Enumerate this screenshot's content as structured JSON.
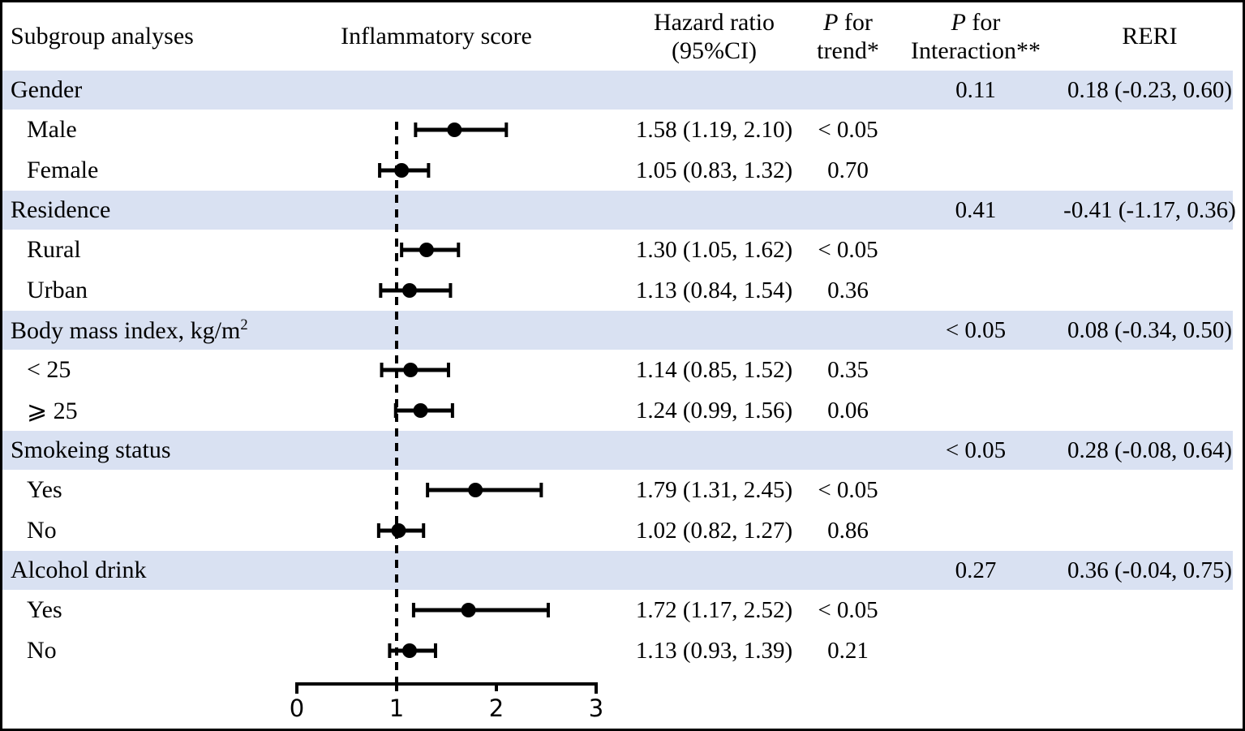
{
  "header": {
    "subgroup": "Subgroup analyses",
    "plot": "Inflammatory score",
    "hazard_line1": "Hazard ratio",
    "hazard_line2": "(95%CI)",
    "p_symbol": "P",
    "for_word": "for",
    "trend_line2": "trend*",
    "interaction_line2": "Interaction**",
    "reri": "RERI"
  },
  "colors": {
    "section_band": "#d9e1f2",
    "ink": "#000000"
  },
  "chart_data": {
    "type": "scatter",
    "variant": "forest-plot",
    "title": "",
    "xlabel": "",
    "x_axis": {
      "min": 0,
      "max": 3,
      "ticks": [
        0,
        1,
        2,
        3
      ]
    },
    "reference_line_x": 1,
    "rows": [
      {
        "type": "section",
        "label": "Gender",
        "p_interaction": "0.11",
        "reri": "0.18 (-0.23, 0.60)"
      },
      {
        "type": "item",
        "label": "Male",
        "hr": 1.58,
        "ci_low": 1.19,
        "ci_high": 2.1,
        "hr_text": "1.58 (1.19, 2.10)",
        "p_trend": "< 0.05"
      },
      {
        "type": "item",
        "label": "Female",
        "hr": 1.05,
        "ci_low": 0.83,
        "ci_high": 1.32,
        "hr_text": "1.05 (0.83, 1.32)",
        "p_trend": "0.70"
      },
      {
        "type": "section",
        "label": "Residence",
        "p_interaction": "0.41",
        "reri": "-0.41 (-1.17, 0.36)"
      },
      {
        "type": "item",
        "label": "Rural",
        "hr": 1.3,
        "ci_low": 1.05,
        "ci_high": 1.62,
        "hr_text": "1.30 (1.05, 1.62)",
        "p_trend": "< 0.05"
      },
      {
        "type": "item",
        "label": "Urban",
        "hr": 1.13,
        "ci_low": 0.84,
        "ci_high": 1.54,
        "hr_text": "1.13 (0.84, 1.54)",
        "p_trend": "0.36"
      },
      {
        "type": "section",
        "label": "Body mass index, kg/m",
        "label_superscript": "2",
        "p_interaction": "< 0.05",
        "reri": "0.08 (-0.34, 0.50)"
      },
      {
        "type": "item",
        "label": "< 25",
        "hr": 1.14,
        "ci_low": 0.85,
        "ci_high": 1.52,
        "hr_text": "1.14 (0.85, 1.52)",
        "p_trend": "0.35"
      },
      {
        "type": "item",
        "label": "⩾ 25",
        "hr": 1.24,
        "ci_low": 0.99,
        "ci_high": 1.56,
        "hr_text": "1.24 (0.99, 1.56)",
        "p_trend": "0.06"
      },
      {
        "type": "section",
        "label": "Smokeing status",
        "p_interaction": "< 0.05",
        "reri": "0.28 (-0.08, 0.64)"
      },
      {
        "type": "item",
        "label": "Yes",
        "hr": 1.79,
        "ci_low": 1.31,
        "ci_high": 2.45,
        "hr_text": "1.79 (1.31, 2.45)",
        "p_trend": "< 0.05"
      },
      {
        "type": "item",
        "label": "No",
        "hr": 1.02,
        "ci_low": 0.82,
        "ci_high": 1.27,
        "hr_text": "1.02 (0.82, 1.27)",
        "p_trend": "0.86"
      },
      {
        "type": "section",
        "label": "Alcohol drink",
        "p_interaction": "0.27",
        "reri": "0.36 (-0.04, 0.75)"
      },
      {
        "type": "item",
        "label": "Yes",
        "hr": 1.72,
        "ci_low": 1.17,
        "ci_high": 2.52,
        "hr_text": "1.72 (1.17, 2.52)",
        "p_trend": "< 0.05"
      },
      {
        "type": "item",
        "label": "No",
        "hr": 1.13,
        "ci_low": 0.93,
        "ci_high": 1.39,
        "hr_text": "1.13 (0.93, 1.39)",
        "p_trend": "0.21"
      }
    ]
  }
}
